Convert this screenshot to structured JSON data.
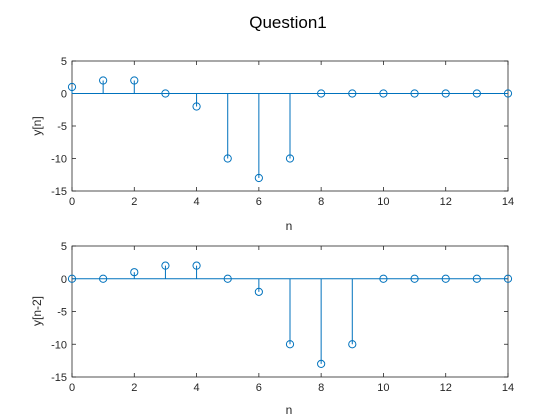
{
  "figure": {
    "title": "Question1"
  },
  "colors": {
    "stem": "#0072BD",
    "axis": "#262626",
    "background": "#ffffff"
  },
  "chart_data": [
    {
      "type": "stem",
      "title": "",
      "xlabel": "n",
      "ylabel": "y[n]",
      "xlim": [
        0,
        14
      ],
      "ylim": [
        -15,
        5
      ],
      "xticks": [
        0,
        2,
        4,
        6,
        8,
        10,
        12,
        14
      ],
      "yticks": [
        -15,
        -10,
        -5,
        0,
        5
      ],
      "grid": false,
      "series": [
        {
          "x": [
            0,
            1,
            2,
            3,
            4,
            5,
            6,
            7,
            8,
            9,
            10,
            11,
            12,
            13,
            14
          ],
          "y": [
            1,
            2,
            2,
            0,
            -2,
            -10,
            -13,
            -10,
            0,
            0,
            0,
            0,
            0,
            0,
            0
          ]
        }
      ]
    },
    {
      "type": "stem",
      "title": "",
      "xlabel": "n",
      "ylabel": "y[n-2]",
      "xlim": [
        0,
        14
      ],
      "ylim": [
        -15,
        5
      ],
      "xticks": [
        0,
        2,
        4,
        6,
        8,
        10,
        12,
        14
      ],
      "yticks": [
        -15,
        -10,
        -5,
        0,
        5
      ],
      "grid": false,
      "series": [
        {
          "x": [
            0,
            1,
            2,
            3,
            4,
            5,
            6,
            7,
            8,
            9,
            10,
            11,
            12,
            13,
            14
          ],
          "y": [
            0,
            0,
            1,
            2,
            2,
            0,
            -2,
            -10,
            -13,
            -10,
            0,
            0,
            0,
            0,
            0
          ]
        }
      ]
    }
  ]
}
